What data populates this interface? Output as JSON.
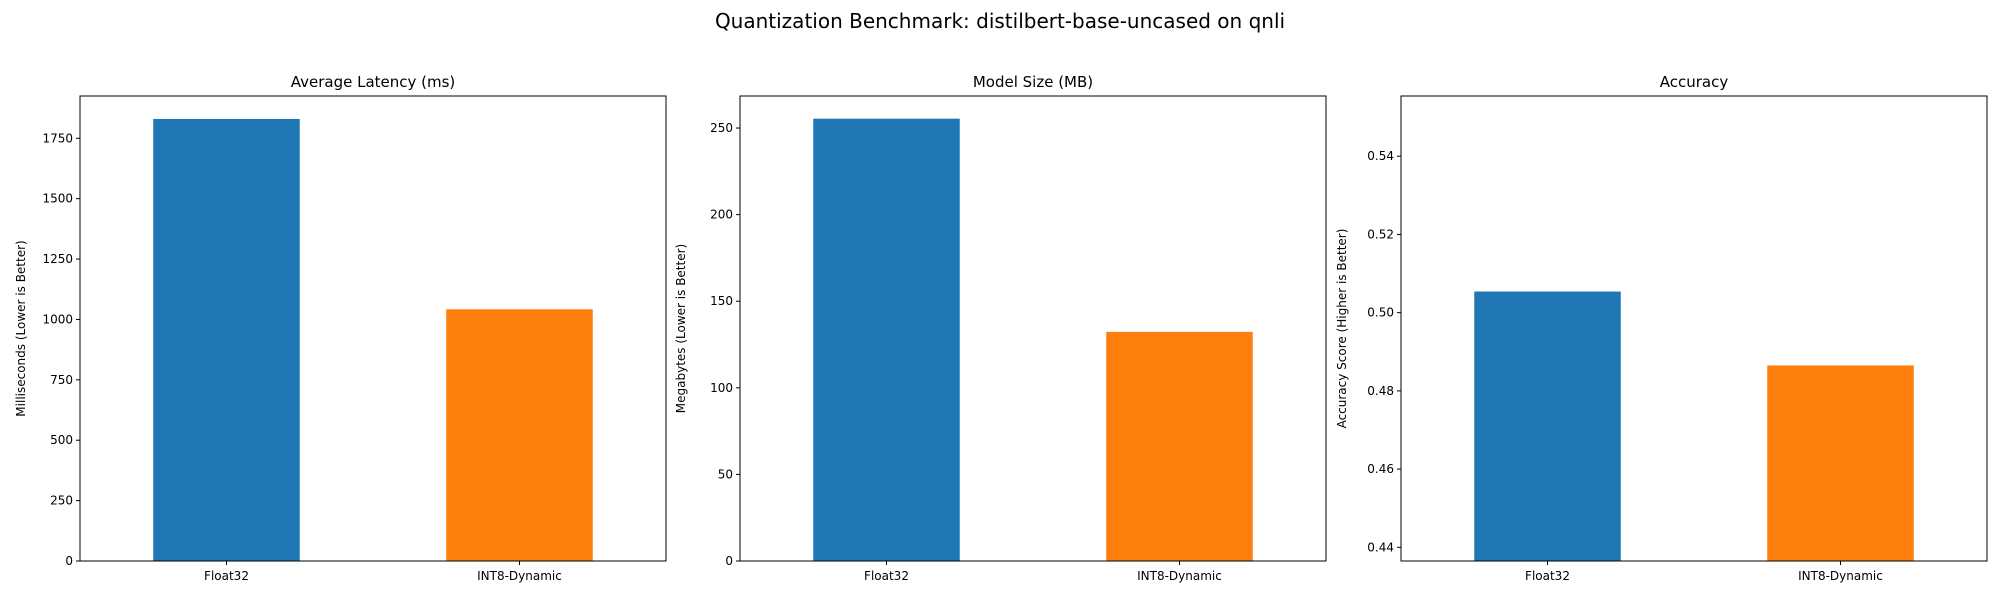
{
  "suptitle": "Quantization Benchmark: distilbert-base-uncased on qnli",
  "colors": {
    "float32": "#1f77b4",
    "int8": "#ff7f0e"
  },
  "chart_data": [
    {
      "type": "bar",
      "title": "Average Latency (ms)",
      "ylabel": "Milliseconds (Lower is Better)",
      "categories": [
        "Float32",
        "INT8-Dynamic"
      ],
      "values": [
        1830,
        1042
      ],
      "ylim": [
        0,
        1925
      ],
      "yticks": [
        "0",
        "250",
        "500",
        "750",
        "1000",
        "1250",
        "1500",
        "1750"
      ]
    },
    {
      "type": "bar",
      "title": "Model Size (MB)",
      "ylabel": "Megabytes (Lower is Better)",
      "categories": [
        "Float32",
        "INT8-Dynamic"
      ],
      "values": [
        255.4,
        132.3
      ],
      "ylim": [
        0,
        268.5
      ],
      "yticks": [
        "0",
        "50",
        "100",
        "150",
        "200",
        "250"
      ]
    },
    {
      "type": "bar",
      "title": "Accuracy",
      "ylabel": "Accuracy Score (Higher is Better)",
      "categories": [
        "Float32",
        "INT8-Dynamic"
      ],
      "values": [
        0.5054,
        0.4865
      ],
      "ylim": [
        0.4365,
        0.5554
      ],
      "yticks": [
        "0.44",
        "0.46",
        "0.48",
        "0.50",
        "0.52",
        "0.54"
      ]
    }
  ]
}
